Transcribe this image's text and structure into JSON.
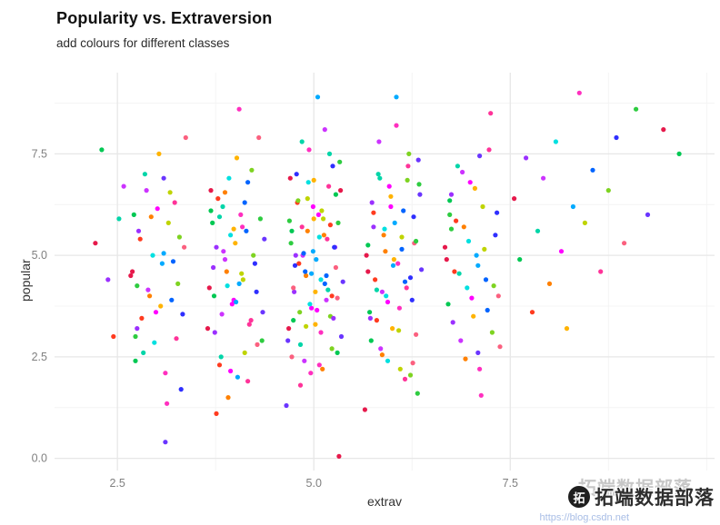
{
  "chart": {
    "title": "Popularity vs. Extraversion",
    "subtitle": "add colours for different classes",
    "x_label": "extrav",
    "y_label": "popular"
  },
  "watermark": {
    "brand": "拓端数据部落",
    "echo": "拓端数据部落",
    "logo_glyph": "拓",
    "url": "https://blog.csdn.net"
  },
  "chart_data": {
    "type": "scatter",
    "title": "Popularity vs. Extraversion",
    "subtitle": "add colours for different classes",
    "xlabel": "extrav",
    "ylabel": "popular",
    "legend": "none",
    "grid": "major-and-minor",
    "x_domain": [
      1.7,
      10.1
    ],
    "y_domain": [
      -0.3,
      9.5
    ],
    "x_ticks": [
      {
        "v": 2.5,
        "label": "2.5"
      },
      {
        "v": 5.0,
        "label": "5.0"
      },
      {
        "v": 7.5,
        "label": "7.5"
      }
    ],
    "y_ticks": [
      {
        "v": 0.0,
        "label": "0.0"
      },
      {
        "v": 2.5,
        "label": "2.5"
      },
      {
        "v": 5.0,
        "label": "5.0"
      },
      {
        "v": 7.5,
        "label": "7.5"
      }
    ],
    "x_minor": [
      3.75,
      6.25,
      8.75,
      10.0
    ],
    "y_minor": [
      1.25,
      3.75,
      6.25,
      8.75
    ],
    "grid_major_color": "#e7e7e7",
    "grid_minor_color": "#f4f4f4",
    "tick_label_color": "#808080",
    "point_radius": 2.6,
    "palette": [
      "#e6194b",
      "#ff3b1f",
      "#ff8000",
      "#ffb300",
      "#bfd400",
      "#7ed321",
      "#2ecc40",
      "#00c853",
      "#00d5a8",
      "#00e0e0",
      "#00aaff",
      "#0064ff",
      "#2f2fff",
      "#6a35ff",
      "#9b30ff",
      "#cc33ff",
      "#ff00ff",
      "#ff2fbf",
      "#ff3399",
      "#fb607f"
    ],
    "points": [
      [
        2.22,
        5.3,
        0
      ],
      [
        2.3,
        7.6,
        7
      ],
      [
        2.38,
        4.4,
        14
      ],
      [
        2.45,
        3.0,
        1
      ],
      [
        2.52,
        5.9,
        8
      ],
      [
        2.58,
        6.7,
        15
      ],
      [
        2.67,
        4.5,
        0
      ],
      [
        2.71,
        6.0,
        7
      ],
      [
        2.75,
        3.2,
        14
      ],
      [
        2.79,
        5.4,
        1
      ],
      [
        2.83,
        2.6,
        8
      ],
      [
        2.87,
        6.6,
        15
      ],
      [
        2.91,
        4.0,
        2
      ],
      [
        2.95,
        5.0,
        9
      ],
      [
        2.99,
        3.6,
        16
      ],
      [
        3.03,
        7.5,
        3
      ],
      [
        3.07,
        4.8,
        10
      ],
      [
        3.11,
        2.1,
        17
      ],
      [
        3.15,
        5.8,
        4
      ],
      [
        3.19,
        3.9,
        11
      ],
      [
        3.23,
        6.3,
        18
      ],
      [
        3.27,
        4.3,
        5
      ],
      [
        3.31,
        1.7,
        12
      ],
      [
        3.35,
        5.2,
        19
      ],
      [
        2.73,
        3.0,
        6
      ],
      [
        3.09,
        6.9,
        13
      ],
      [
        2.69,
        4.6,
        0
      ],
      [
        2.73,
        2.4,
        7
      ],
      [
        2.77,
        5.6,
        14
      ],
      [
        2.81,
        3.45,
        1
      ],
      [
        2.85,
        7.0,
        8
      ],
      [
        2.89,
        4.15,
        15
      ],
      [
        2.93,
        5.95,
        2
      ],
      [
        2.97,
        2.85,
        9
      ],
      [
        3.01,
        6.15,
        16
      ],
      [
        3.05,
        3.75,
        3
      ],
      [
        3.09,
        5.05,
        10
      ],
      [
        3.13,
        1.35,
        17
      ],
      [
        3.17,
        6.55,
        4
      ],
      [
        3.21,
        4.85,
        11
      ],
      [
        3.25,
        2.95,
        18
      ],
      [
        3.29,
        5.45,
        5
      ],
      [
        3.33,
        3.55,
        12
      ],
      [
        3.37,
        7.9,
        19
      ],
      [
        2.75,
        4.25,
        6
      ],
      [
        3.11,
        0.4,
        13
      ],
      [
        3.67,
        4.2,
        0
      ],
      [
        3.71,
        5.8,
        7
      ],
      [
        3.74,
        3.1,
        14
      ],
      [
        3.78,
        6.4,
        1
      ],
      [
        3.82,
        2.5,
        8
      ],
      [
        3.85,
        5.1,
        15
      ],
      [
        3.89,
        4.6,
        2
      ],
      [
        3.92,
        6.9,
        9
      ],
      [
        3.96,
        3.8,
        16
      ],
      [
        4.0,
        5.3,
        3
      ],
      [
        4.03,
        2.0,
        10
      ],
      [
        4.07,
        6.0,
        17
      ],
      [
        4.1,
        4.4,
        4
      ],
      [
        4.14,
        5.6,
        11
      ],
      [
        4.18,
        3.3,
        18
      ],
      [
        4.21,
        7.1,
        5
      ],
      [
        4.25,
        4.8,
        12
      ],
      [
        4.28,
        2.8,
        19
      ],
      [
        4.32,
        5.9,
        6
      ],
      [
        4.35,
        3.6,
        13
      ],
      [
        3.69,
        6.6,
        0
      ],
      [
        3.73,
        4.0,
        7
      ],
      [
        3.76,
        5.2,
        14
      ],
      [
        3.8,
        2.3,
        1
      ],
      [
        3.84,
        6.2,
        8
      ],
      [
        3.87,
        4.9,
        15
      ],
      [
        3.91,
        1.5,
        2
      ],
      [
        3.94,
        5.5,
        9
      ],
      [
        3.98,
        3.9,
        16
      ],
      [
        4.02,
        7.4,
        3
      ],
      [
        4.05,
        4.3,
        10
      ],
      [
        4.09,
        5.7,
        17
      ],
      [
        4.12,
        2.6,
        4
      ],
      [
        4.16,
        6.8,
        11
      ],
      [
        4.2,
        3.4,
        18
      ],
      [
        4.23,
        5.0,
        5
      ],
      [
        4.27,
        4.1,
        12
      ],
      [
        4.3,
        7.9,
        19
      ],
      [
        4.34,
        2.9,
        6
      ],
      [
        4.37,
        5.4,
        13
      ],
      [
        3.65,
        3.2,
        0
      ],
      [
        3.69,
        6.1,
        7
      ],
      [
        3.72,
        4.7,
        14
      ],
      [
        3.76,
        1.1,
        1
      ],
      [
        3.8,
        5.95,
        8
      ],
      [
        3.83,
        3.55,
        15
      ],
      [
        3.87,
        6.55,
        2
      ],
      [
        3.9,
        4.25,
        9
      ],
      [
        3.94,
        2.15,
        16
      ],
      [
        3.98,
        5.65,
        3
      ],
      [
        4.01,
        3.85,
        10
      ],
      [
        4.05,
        8.6,
        17
      ],
      [
        4.08,
        4.55,
        4
      ],
      [
        4.12,
        6.3,
        11
      ],
      [
        4.16,
        1.9,
        18
      ],
      [
        4.68,
        3.2,
        0
      ],
      [
        4.72,
        5.6,
        7
      ],
      [
        4.75,
        4.1,
        14
      ],
      [
        4.79,
        6.3,
        1
      ],
      [
        4.83,
        2.8,
        8
      ],
      [
        4.86,
        5.0,
        15
      ],
      [
        4.9,
        4.5,
        2
      ],
      [
        4.93,
        6.8,
        9
      ],
      [
        4.97,
        3.7,
        16
      ],
      [
        5.0,
        5.9,
        3
      ],
      [
        5.03,
        4.9,
        10
      ],
      [
        5.07,
        2.3,
        17
      ],
      [
        5.1,
        6.1,
        4
      ],
      [
        5.14,
        4.3,
        11
      ],
      [
        5.17,
        5.4,
        18
      ],
      [
        5.21,
        3.5,
        5
      ],
      [
        5.24,
        7.2,
        12
      ],
      [
        5.28,
        4.7,
        19
      ],
      [
        5.31,
        5.8,
        6
      ],
      [
        5.35,
        3.0,
        13
      ],
      [
        5.34,
        6.6,
        0
      ],
      [
        5.3,
        2.6,
        7
      ],
      [
        5.27,
        5.2,
        14
      ],
      [
        5.23,
        4.0,
        1
      ],
      [
        5.2,
        7.5,
        8
      ],
      [
        5.16,
        3.9,
        15
      ],
      [
        5.13,
        5.5,
        2
      ],
      [
        5.09,
        4.4,
        9
      ],
      [
        5.06,
        6.0,
        16
      ],
      [
        5.02,
        3.3,
        3
      ],
      [
        4.99,
        5.1,
        10
      ],
      [
        4.96,
        2.1,
        17
      ],
      [
        4.92,
        6.4,
        4
      ],
      [
        4.89,
        4.6,
        11
      ],
      [
        4.85,
        5.7,
        18
      ],
      [
        4.82,
        3.6,
        5
      ],
      [
        4.78,
        7.0,
        12
      ],
      [
        4.74,
        4.2,
        19
      ],
      [
        4.71,
        5.3,
        6
      ],
      [
        4.67,
        2.9,
        13
      ],
      [
        4.7,
        6.9,
        0
      ],
      [
        4.74,
        3.4,
        7
      ],
      [
        4.77,
        5.0,
        14
      ],
      [
        4.81,
        4.8,
        1
      ],
      [
        4.85,
        7.8,
        8
      ],
      [
        4.88,
        2.4,
        15
      ],
      [
        4.92,
        5.6,
        2
      ],
      [
        4.95,
        3.8,
        9
      ],
      [
        4.99,
        6.2,
        16
      ],
      [
        5.02,
        4.1,
        3
      ],
      [
        5.05,
        8.9,
        10
      ],
      [
        5.09,
        3.1,
        17
      ],
      [
        5.12,
        5.9,
        4
      ],
      [
        5.16,
        4.5,
        11
      ],
      [
        5.19,
        6.7,
        18
      ],
      [
        5.23,
        2.7,
        5
      ],
      [
        5.26,
        5.2,
        12
      ],
      [
        5.3,
        3.95,
        19
      ],
      [
        5.33,
        7.3,
        6
      ],
      [
        5.37,
        4.35,
        13
      ],
      [
        5.32,
        0.05,
        0
      ],
      [
        5.28,
        6.5,
        7
      ],
      [
        5.25,
        3.45,
        14
      ],
      [
        5.21,
        5.75,
        1
      ],
      [
        5.18,
        4.15,
        8
      ],
      [
        5.14,
        8.1,
        15
      ],
      [
        5.11,
        2.2,
        2
      ],
      [
        5.07,
        5.45,
        9
      ],
      [
        5.04,
        3.65,
        16
      ],
      [
        5.0,
        6.85,
        3
      ],
      [
        4.97,
        4.55,
        10
      ],
      [
        4.94,
        7.6,
        17
      ],
      [
        4.9,
        3.25,
        4
      ],
      [
        4.87,
        5.05,
        11
      ],
      [
        4.83,
        1.8,
        18
      ],
      [
        4.8,
        6.35,
        5
      ],
      [
        4.76,
        4.75,
        12
      ],
      [
        4.72,
        2.5,
        19
      ],
      [
        4.69,
        5.85,
        6
      ],
      [
        4.65,
        1.3,
        13
      ],
      [
        5.67,
        5.0,
        0
      ],
      [
        5.71,
        3.6,
        7
      ],
      [
        5.74,
        6.3,
        14
      ],
      [
        5.78,
        4.4,
        1
      ],
      [
        5.82,
        7.0,
        8
      ],
      [
        5.85,
        2.7,
        15
      ],
      [
        5.89,
        5.5,
        2
      ],
      [
        5.92,
        4.0,
        9
      ],
      [
        5.96,
        6.7,
        16
      ],
      [
        6.0,
        3.2,
        3
      ],
      [
        6.03,
        5.8,
        10
      ],
      [
        6.07,
        4.8,
        17
      ],
      [
        6.1,
        2.2,
        4
      ],
      [
        6.14,
        6.1,
        11
      ],
      [
        6.18,
        4.2,
        18
      ],
      [
        6.21,
        7.5,
        5
      ],
      [
        6.25,
        3.9,
        12
      ],
      [
        6.28,
        5.3,
        19
      ],
      [
        6.32,
        1.6,
        6
      ],
      [
        6.35,
        6.5,
        13
      ],
      [
        5.69,
        4.6,
        0
      ],
      [
        5.73,
        2.9,
        7
      ],
      [
        5.76,
        5.7,
        14
      ],
      [
        5.8,
        3.4,
        1
      ],
      [
        5.84,
        6.9,
        8
      ],
      [
        5.87,
        4.1,
        15
      ],
      [
        5.91,
        5.1,
        2
      ],
      [
        5.94,
        2.4,
        9
      ],
      [
        5.98,
        6.2,
        16
      ],
      [
        6.02,
        4.9,
        3
      ],
      [
        6.05,
        8.9,
        10
      ],
      [
        6.09,
        3.7,
        17
      ],
      [
        6.12,
        5.45,
        4
      ],
      [
        6.16,
        4.35,
        11
      ],
      [
        6.2,
        7.2,
        18
      ],
      [
        6.23,
        2.05,
        5
      ],
      [
        6.27,
        5.95,
        12
      ],
      [
        6.3,
        3.05,
        19
      ],
      [
        6.34,
        6.75,
        6
      ],
      [
        6.37,
        4.65,
        13
      ],
      [
        5.65,
        1.2,
        0
      ],
      [
        5.69,
        5.25,
        7
      ],
      [
        5.72,
        3.45,
        14
      ],
      [
        5.76,
        6.05,
        1
      ],
      [
        5.8,
        4.15,
        8
      ],
      [
        5.83,
        7.8,
        15
      ],
      [
        5.87,
        2.55,
        2
      ],
      [
        5.9,
        5.65,
        9
      ],
      [
        5.94,
        3.85,
        16
      ],
      [
        5.98,
        6.45,
        3
      ],
      [
        6.01,
        4.75,
        10
      ],
      [
        6.05,
        8.2,
        17
      ],
      [
        6.08,
        3.15,
        4
      ],
      [
        6.12,
        5.15,
        11
      ],
      [
        6.16,
        1.95,
        18
      ],
      [
        6.19,
        6.85,
        5
      ],
      [
        6.23,
        4.45,
        12
      ],
      [
        6.26,
        2.35,
        19
      ],
      [
        6.3,
        5.35,
        6
      ],
      [
        6.33,
        7.35,
        13
      ],
      [
        6.67,
        5.2,
        0
      ],
      [
        6.71,
        3.8,
        7
      ],
      [
        6.75,
        6.5,
        14
      ],
      [
        6.79,
        4.6,
        1
      ],
      [
        6.83,
        7.2,
        8
      ],
      [
        6.87,
        2.9,
        15
      ],
      [
        6.91,
        5.7,
        2
      ],
      [
        6.95,
        4.2,
        9
      ],
      [
        6.99,
        6.8,
        16
      ],
      [
        7.03,
        3.5,
        3
      ],
      [
        7.07,
        5.0,
        10
      ],
      [
        7.11,
        2.2,
        17
      ],
      [
        7.15,
        6.2,
        4
      ],
      [
        7.19,
        4.4,
        11
      ],
      [
        7.23,
        7.6,
        18
      ],
      [
        7.27,
        3.1,
        5
      ],
      [
        7.31,
        5.5,
        12
      ],
      [
        7.35,
        4.0,
        19
      ],
      [
        6.73,
        6.0,
        6
      ],
      [
        7.09,
        2.6,
        13
      ],
      [
        6.69,
        4.9,
        0
      ],
      [
        6.73,
        6.35,
        7
      ],
      [
        6.77,
        3.35,
        14
      ],
      [
        6.81,
        5.85,
        1
      ],
      [
        6.85,
        4.55,
        8
      ],
      [
        6.89,
        7.05,
        15
      ],
      [
        6.93,
        2.45,
        2
      ],
      [
        6.97,
        5.35,
        9
      ],
      [
        7.01,
        3.95,
        16
      ],
      [
        7.05,
        6.65,
        3
      ],
      [
        7.09,
        4.75,
        10
      ],
      [
        7.13,
        1.55,
        17
      ],
      [
        7.17,
        5.15,
        4
      ],
      [
        7.21,
        3.65,
        11
      ],
      [
        7.25,
        8.5,
        18
      ],
      [
        7.29,
        4.25,
        5
      ],
      [
        7.33,
        6.05,
        12
      ],
      [
        7.37,
        2.75,
        19
      ],
      [
        6.75,
        5.65,
        6
      ],
      [
        7.11,
        7.45,
        13
      ],
      [
        7.55,
        6.4,
        0
      ],
      [
        7.62,
        4.9,
        7
      ],
      [
        7.7,
        7.4,
        14
      ],
      [
        7.78,
        3.6,
        1
      ],
      [
        7.85,
        5.6,
        8
      ],
      [
        7.92,
        6.9,
        15
      ],
      [
        8.0,
        4.3,
        2
      ],
      [
        8.08,
        7.8,
        9
      ],
      [
        8.15,
        5.1,
        16
      ],
      [
        8.22,
        3.2,
        3
      ],
      [
        8.3,
        6.2,
        10
      ],
      [
        8.38,
        9.0,
        17
      ],
      [
        8.45,
        5.8,
        4
      ],
      [
        8.55,
        7.1,
        11
      ],
      [
        8.65,
        4.6,
        18
      ],
      [
        8.75,
        6.6,
        5
      ],
      [
        8.85,
        7.9,
        12
      ],
      [
        8.95,
        5.3,
        19
      ],
      [
        9.1,
        8.6,
        6
      ],
      [
        9.25,
        6.0,
        13
      ],
      [
        9.45,
        8.1,
        0
      ],
      [
        9.65,
        7.5,
        7
      ]
    ]
  }
}
